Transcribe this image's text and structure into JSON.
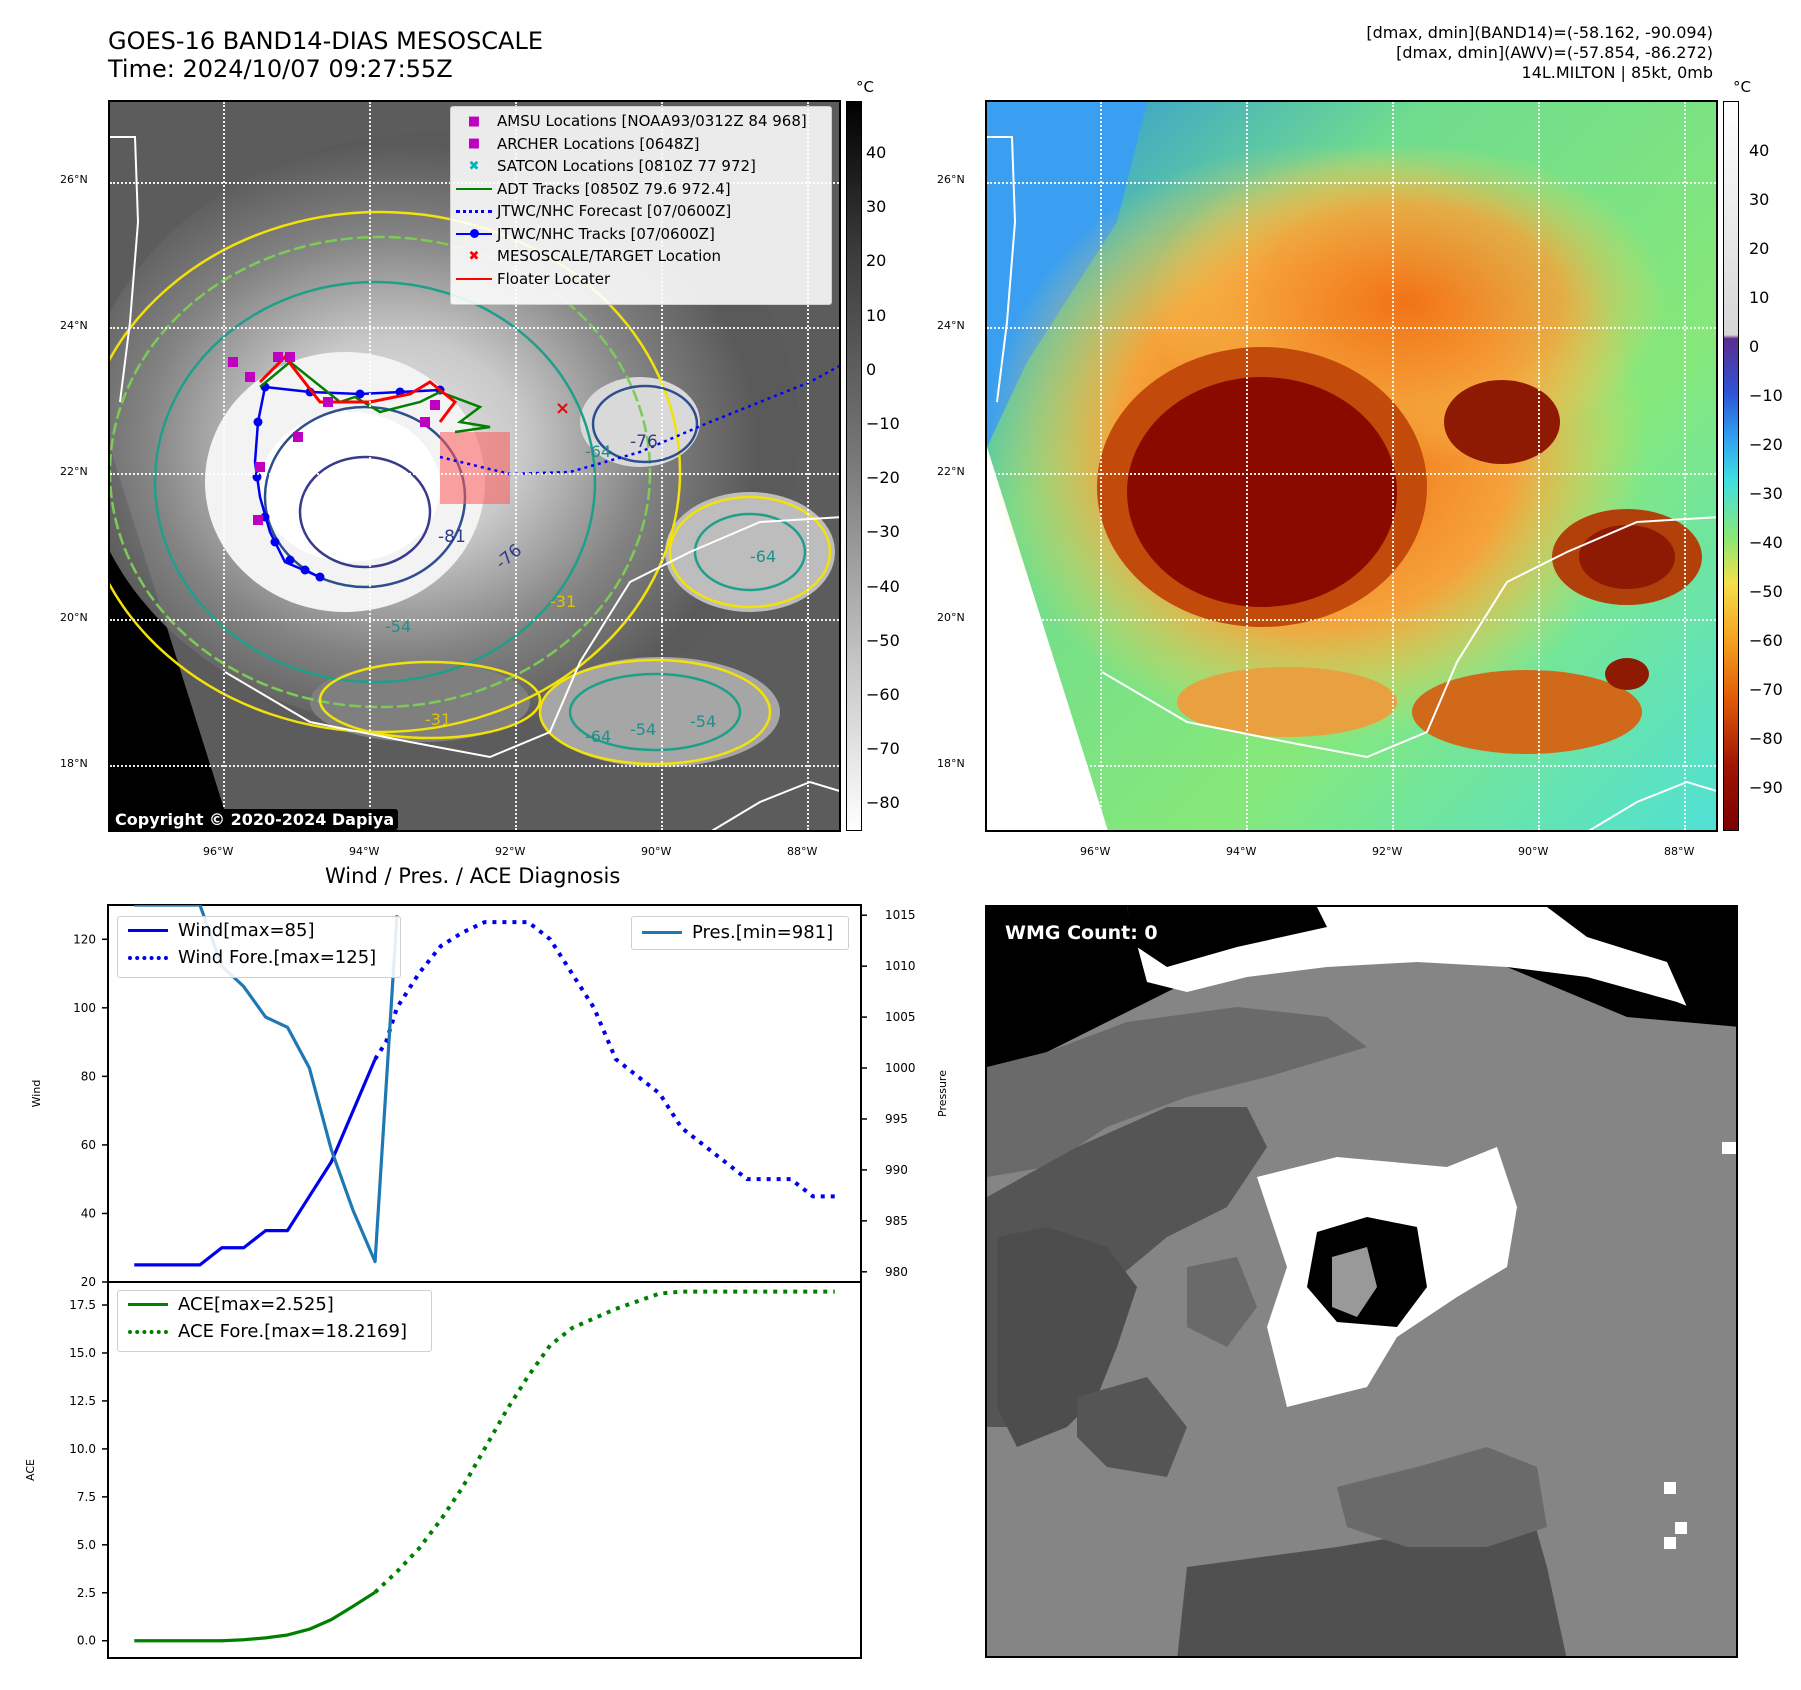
{
  "header": {
    "title_line1": "GOES-16 BAND14-DIAS MESOSCALE",
    "title_line2": "Time: 2024/10/07 09:27:55Z",
    "stats_line1": "[dmax, dmin](BAND14)=(-58.162, -90.094)",
    "stats_line2": "[dmax, dmin](AWV)=(-57.854, -86.272)",
    "stats_line3": "14L.MILTON | 85kt, 0mb"
  },
  "maps": {
    "lat_labels": [
      "26°N",
      "24°N",
      "22°N",
      "20°N",
      "18°N"
    ],
    "lon_labels": [
      "96°W",
      "94°W",
      "92°W",
      "90°W",
      "88°W"
    ],
    "copyright": "Copyright © 2020-2024 Dapiya",
    "contour_labels": [
      "-81",
      "-76",
      "-76",
      "-64",
      "-64",
      "-54",
      "-31",
      "-31",
      "-54",
      "-64",
      "-54"
    ],
    "legend": [
      {
        "label": "AMSU Locations [NOAA93/0312Z 84 968]",
        "color": "#c000c0",
        "marker": "square"
      },
      {
        "label": "ARCHER Locations [0648Z]",
        "color": "#c000c0",
        "marker": "square"
      },
      {
        "label": "SATCON Locations [0810Z 77 972]",
        "color": "#00b5b5",
        "marker": "x"
      },
      {
        "label": "ADT Tracks [0850Z 79.6 972.4]",
        "color": "#008000",
        "marker": "line"
      },
      {
        "label": "JTWC/NHC Forecast [07/0600Z]",
        "color": "#0000ff",
        "marker": "dotted"
      },
      {
        "label": "JTWC/NHC Tracks [07/0600Z]",
        "color": "#0000ff",
        "marker": "dotline"
      },
      {
        "label": "MESOSCALE/TARGET Location",
        "color": "#ff0000",
        "marker": "x"
      },
      {
        "label": "Floater Locater",
        "color": "#ff0000",
        "marker": "line"
      }
    ],
    "colorbar_gray": {
      "unit": "°C",
      "ticks": [
        "40",
        "30",
        "20",
        "10",
        "0",
        "−10",
        "−20",
        "−30",
        "−40",
        "−50",
        "−60",
        "−70",
        "−80"
      ]
    },
    "colorbar_color": {
      "unit": "°C",
      "ticks": [
        "40",
        "30",
        "20",
        "10",
        "0",
        "−10",
        "−20",
        "−30",
        "−40",
        "−50",
        "−60",
        "−70",
        "−80",
        "−90"
      ]
    }
  },
  "wmg": {
    "label": "WMG Count: 0"
  },
  "chart_data": [
    {
      "type": "line",
      "title": "Wind / Pres. / ACE Diagnosis",
      "xlabel": "",
      "ylabel": "Wind",
      "ylabel_right": "Pressure",
      "ylim": [
        20,
        130
      ],
      "ylim_right": [
        979,
        1016
      ],
      "yticks": [
        20,
        40,
        60,
        80,
        100,
        120
      ],
      "yticks_right": [
        980,
        985,
        990,
        995,
        1000,
        1005,
        1010,
        1015
      ],
      "series": [
        {
          "name": "Wind[max=85]",
          "style": "solid",
          "color": "#0000ee",
          "x": [
            0,
            1,
            2,
            3,
            4,
            5,
            6,
            7,
            8,
            9,
            10,
            11
          ],
          "values": [
            25,
            25,
            25,
            25,
            30,
            30,
            35,
            35,
            45,
            55,
            70,
            85
          ]
        },
        {
          "name": "Wind Fore.[max=125]",
          "style": "dotted",
          "color": "#0000ee",
          "x": [
            11,
            11.5,
            12,
            13,
            14,
            15,
            16,
            17,
            18,
            19,
            20,
            21,
            22,
            23,
            24,
            25,
            26,
            27,
            28,
            29,
            30,
            31,
            32
          ],
          "values": [
            85,
            90,
            100,
            110,
            118,
            122,
            125,
            125,
            125,
            120,
            110,
            100,
            85,
            80,
            75,
            65,
            60,
            55,
            50,
            50,
            50,
            45,
            45
          ]
        },
        {
          "name": "Pres.[min=981]",
          "style": "solid",
          "color": "#1f77b4",
          "axis": "right",
          "x": [
            0,
            1,
            2,
            3,
            4,
            5,
            6,
            7,
            8,
            9,
            10,
            11,
            12
          ],
          "values": [
            1016,
            1016,
            1016,
            1016,
            1010,
            1008,
            1005,
            1004,
            1000,
            992,
            986,
            981,
            1015
          ]
        }
      ]
    },
    {
      "type": "line",
      "title": "",
      "xlabel": "",
      "ylabel": "ACE",
      "ylim": [
        -0.9,
        18.7
      ],
      "yticks": [
        0.0,
        2.5,
        5.0,
        7.5,
        10.0,
        12.5,
        15.0,
        17.5
      ],
      "ytick_labels": [
        "0.0",
        "2.5",
        "5.0",
        "7.5",
        "10.0",
        "12.5",
        "15.0",
        "17.5"
      ],
      "series": [
        {
          "name": "ACE[max=2.525]",
          "style": "solid",
          "color": "#008000",
          "x": [
            0,
            1,
            2,
            3,
            4,
            5,
            6,
            7,
            8,
            9,
            10,
            11
          ],
          "values": [
            0,
            0,
            0,
            0,
            0,
            0.05,
            0.15,
            0.3,
            0.6,
            1.1,
            1.8,
            2.525
          ]
        },
        {
          "name": "ACE Fore.[max=18.2169]",
          "style": "dotted",
          "color": "#008000",
          "x": [
            11,
            12,
            13,
            14,
            15,
            16,
            17,
            18,
            19,
            20,
            21,
            22,
            23,
            24,
            25,
            26,
            27,
            28,
            29,
            30,
            31,
            32
          ],
          "values": [
            2.525,
            3.6,
            4.8,
            6.3,
            8.0,
            10.0,
            12.0,
            13.8,
            15.4,
            16.3,
            16.8,
            17.3,
            17.7,
            18.1,
            18.2,
            18.2,
            18.2,
            18.2,
            18.2,
            18.2,
            18.2,
            18.2
          ]
        }
      ]
    }
  ]
}
